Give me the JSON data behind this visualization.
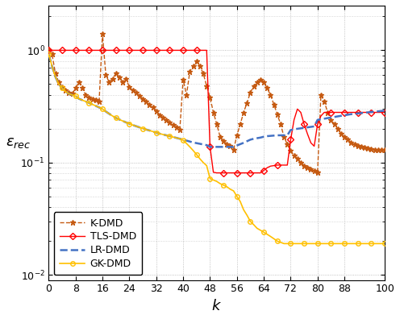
{
  "xlabel": "k",
  "ylabel": "\\epsilon_{rec}",
  "xlim": [
    0,
    100
  ],
  "ylim": [
    0.009,
    2.5
  ],
  "xticks": [
    0,
    8,
    16,
    24,
    32,
    40,
    48,
    56,
    64,
    72,
    80,
    88,
    100
  ],
  "colors": {
    "LR-DMD": "#4472C4",
    "TLS-DMD": "#FF0000",
    "K-DMD": "#C55A11",
    "GK-DMD": "#FFC000"
  },
  "LR_DMD_x": [
    0,
    1,
    2,
    3,
    4,
    5,
    6,
    7,
    8,
    9,
    10,
    11,
    12,
    13,
    14,
    15,
    16,
    17,
    18,
    19,
    20,
    21,
    22,
    23,
    24,
    25,
    26,
    27,
    28,
    29,
    30,
    31,
    32,
    33,
    34,
    35,
    36,
    37,
    38,
    39,
    40,
    41,
    42,
    43,
    44,
    45,
    46,
    47,
    48,
    49,
    50,
    51,
    52,
    53,
    54,
    55,
    56,
    57,
    58,
    59,
    60,
    61,
    62,
    63,
    64,
    65,
    66,
    67,
    68,
    69,
    70,
    71,
    72,
    73,
    74,
    75,
    76,
    77,
    78,
    79,
    80,
    81,
    82,
    83,
    84,
    85,
    86,
    87,
    88,
    89,
    90,
    91,
    92,
    93,
    94,
    95,
    96,
    97,
    98,
    99,
    100
  ],
  "LR_DMD_y": [
    0.92,
    0.72,
    0.58,
    0.5,
    0.46,
    0.43,
    0.41,
    0.4,
    0.39,
    0.37,
    0.36,
    0.35,
    0.34,
    0.33,
    0.32,
    0.31,
    0.3,
    0.285,
    0.272,
    0.26,
    0.25,
    0.242,
    0.235,
    0.228,
    0.222,
    0.216,
    0.211,
    0.206,
    0.201,
    0.197,
    0.193,
    0.189,
    0.185,
    0.181,
    0.178,
    0.175,
    0.172,
    0.169,
    0.166,
    0.163,
    0.16,
    0.157,
    0.154,
    0.151,
    0.149,
    0.147,
    0.145,
    0.143,
    0.138,
    0.138,
    0.138,
    0.138,
    0.138,
    0.138,
    0.138,
    0.138,
    0.142,
    0.146,
    0.15,
    0.155,
    0.16,
    0.163,
    0.165,
    0.167,
    0.17,
    0.172,
    0.173,
    0.174,
    0.175,
    0.175,
    0.175,
    0.175,
    0.195,
    0.198,
    0.2,
    0.202,
    0.204,
    0.206,
    0.208,
    0.21,
    0.24,
    0.243,
    0.246,
    0.249,
    0.252,
    0.255,
    0.258,
    0.261,
    0.264,
    0.267,
    0.27,
    0.272,
    0.274,
    0.276,
    0.278,
    0.28,
    0.282,
    0.284,
    0.286,
    0.288,
    0.29
  ],
  "TLS_DMD_x": [
    0,
    1,
    2,
    3,
    4,
    5,
    6,
    7,
    8,
    9,
    10,
    11,
    12,
    13,
    14,
    15,
    16,
    17,
    18,
    19,
    20,
    21,
    22,
    23,
    24,
    25,
    26,
    27,
    28,
    29,
    30,
    31,
    32,
    33,
    34,
    35,
    36,
    37,
    38,
    39,
    40,
    41,
    42,
    43,
    44,
    45,
    46,
    47,
    48,
    49,
    50,
    51,
    52,
    53,
    54,
    55,
    56,
    57,
    58,
    59,
    60,
    61,
    62,
    63,
    64,
    65,
    66,
    67,
    68,
    69,
    70,
    71,
    72,
    73,
    74,
    75,
    76,
    77,
    78,
    79,
    80,
    81,
    82,
    83,
    84,
    85,
    86,
    87,
    88,
    89,
    90,
    91,
    92,
    93,
    94,
    95,
    96,
    97,
    98,
    99,
    100
  ],
  "TLS_DMD_y": [
    1.0,
    1.0,
    1.0,
    1.0,
    1.0,
    1.0,
    1.0,
    1.0,
    1.0,
    1.0,
    1.0,
    1.0,
    1.0,
    1.0,
    1.0,
    1.0,
    1.0,
    1.0,
    1.0,
    1.0,
    1.0,
    1.0,
    1.0,
    1.0,
    1.0,
    1.0,
    1.0,
    1.0,
    1.0,
    1.0,
    1.0,
    1.0,
    1.0,
    1.0,
    1.0,
    1.0,
    1.0,
    1.0,
    1.0,
    1.0,
    1.0,
    1.0,
    1.0,
    1.0,
    1.0,
    1.0,
    1.0,
    1.0,
    0.138,
    0.082,
    0.081,
    0.081,
    0.081,
    0.081,
    0.081,
    0.081,
    0.081,
    0.081,
    0.081,
    0.081,
    0.081,
    0.081,
    0.081,
    0.081,
    0.085,
    0.09,
    0.093,
    0.094,
    0.095,
    0.095,
    0.095,
    0.095,
    0.16,
    0.24,
    0.3,
    0.28,
    0.22,
    0.18,
    0.15,
    0.14,
    0.22,
    0.26,
    0.28,
    0.28,
    0.28,
    0.28,
    0.28,
    0.28,
    0.28,
    0.28,
    0.28,
    0.28,
    0.28,
    0.28,
    0.28,
    0.28,
    0.28,
    0.28,
    0.28,
    0.28,
    0.28
  ],
  "K_DMD_x": [
    0,
    1,
    2,
    3,
    4,
    5,
    6,
    7,
    8,
    9,
    10,
    11,
    12,
    13,
    14,
    15,
    16,
    17,
    18,
    19,
    20,
    21,
    22,
    23,
    24,
    25,
    26,
    27,
    28,
    29,
    30,
    31,
    32,
    33,
    34,
    35,
    36,
    37,
    38,
    39,
    40,
    41,
    42,
    43,
    44,
    45,
    46,
    47,
    48,
    49,
    50,
    51,
    52,
    53,
    54,
    55,
    56,
    57,
    58,
    59,
    60,
    61,
    62,
    63,
    64,
    65,
    66,
    67,
    68,
    69,
    70,
    71,
    72,
    73,
    74,
    75,
    76,
    77,
    78,
    79,
    80,
    81,
    82,
    83,
    84,
    85,
    86,
    87,
    88,
    89,
    90,
    91,
    92,
    93,
    94,
    95,
    96,
    97,
    98,
    99,
    100
  ],
  "K_DMD_y": [
    1.0,
    0.92,
    0.62,
    0.52,
    0.47,
    0.44,
    0.42,
    0.41,
    0.46,
    0.52,
    0.46,
    0.4,
    0.38,
    0.37,
    0.36,
    0.35,
    1.4,
    0.6,
    0.52,
    0.56,
    0.62,
    0.57,
    0.52,
    0.56,
    0.47,
    0.44,
    0.42,
    0.39,
    0.37,
    0.35,
    0.33,
    0.31,
    0.285,
    0.265,
    0.25,
    0.238,
    0.226,
    0.215,
    0.205,
    0.195,
    0.55,
    0.4,
    0.65,
    0.72,
    0.8,
    0.72,
    0.62,
    0.48,
    0.38,
    0.28,
    0.22,
    0.17,
    0.155,
    0.145,
    0.14,
    0.13,
    0.175,
    0.22,
    0.28,
    0.34,
    0.42,
    0.48,
    0.52,
    0.55,
    0.52,
    0.46,
    0.4,
    0.33,
    0.27,
    0.22,
    0.17,
    0.145,
    0.128,
    0.115,
    0.108,
    0.1,
    0.094,
    0.09,
    0.087,
    0.084,
    0.082,
    0.4,
    0.35,
    0.28,
    0.24,
    0.22,
    0.2,
    0.18,
    0.17,
    0.16,
    0.15,
    0.145,
    0.14,
    0.138,
    0.136,
    0.134,
    0.132,
    0.13,
    0.13,
    0.13,
    0.13
  ],
  "GK_DMD_x": [
    0,
    1,
    2,
    3,
    4,
    5,
    6,
    7,
    8,
    9,
    10,
    11,
    12,
    13,
    14,
    15,
    16,
    17,
    18,
    19,
    20,
    21,
    22,
    23,
    24,
    25,
    26,
    27,
    28,
    29,
    30,
    31,
    32,
    33,
    34,
    35,
    36,
    37,
    38,
    39,
    40,
    41,
    42,
    43,
    44,
    45,
    46,
    47,
    48,
    49,
    50,
    51,
    52,
    53,
    54,
    55,
    56,
    57,
    58,
    59,
    60,
    61,
    62,
    63,
    64,
    65,
    66,
    67,
    68,
    69,
    70,
    71,
    72,
    73,
    74,
    75,
    76,
    77,
    78,
    79,
    80,
    81,
    82,
    83,
    84,
    85,
    86,
    87,
    88,
    89,
    90,
    91,
    92,
    93,
    94,
    95,
    96,
    97,
    98,
    99,
    100
  ],
  "GK_DMD_y": [
    0.92,
    0.72,
    0.58,
    0.5,
    0.46,
    0.43,
    0.41,
    0.4,
    0.39,
    0.37,
    0.36,
    0.35,
    0.34,
    0.33,
    0.32,
    0.31,
    0.3,
    0.285,
    0.272,
    0.26,
    0.25,
    0.242,
    0.235,
    0.228,
    0.222,
    0.216,
    0.211,
    0.206,
    0.201,
    0.197,
    0.193,
    0.189,
    0.185,
    0.181,
    0.178,
    0.175,
    0.172,
    0.169,
    0.166,
    0.163,
    0.158,
    0.148,
    0.138,
    0.128,
    0.118,
    0.108,
    0.1,
    0.094,
    0.072,
    0.07,
    0.068,
    0.065,
    0.063,
    0.061,
    0.058,
    0.056,
    0.05,
    0.045,
    0.038,
    0.034,
    0.03,
    0.028,
    0.026,
    0.025,
    0.024,
    0.023,
    0.022,
    0.021,
    0.02,
    0.0195,
    0.019,
    0.019,
    0.019,
    0.019,
    0.019,
    0.019,
    0.019,
    0.019,
    0.019,
    0.019,
    0.019,
    0.019,
    0.019,
    0.019,
    0.019,
    0.019,
    0.019,
    0.019,
    0.019,
    0.019,
    0.019,
    0.019,
    0.019,
    0.019,
    0.019,
    0.019,
    0.019,
    0.019,
    0.019,
    0.019,
    0.019
  ],
  "background_color": "#ffffff",
  "grid_color": "#b0b0b0"
}
